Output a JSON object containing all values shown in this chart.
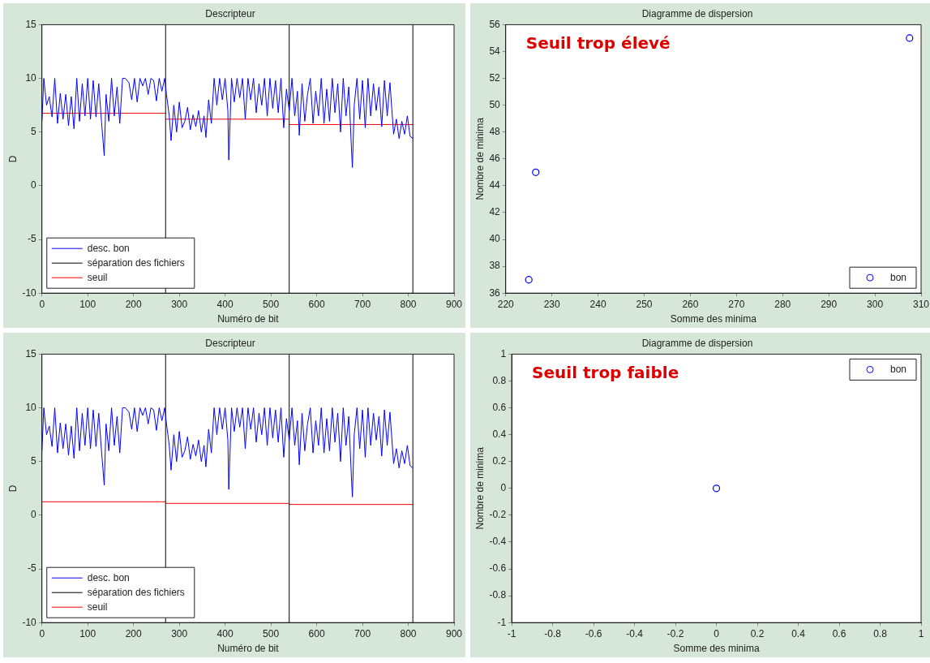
{
  "chart_data": [
    {
      "type": "line",
      "title": "Descripteur",
      "xlabel": "Numéro de bit",
      "ylabel": "D",
      "xlim": [
        0,
        900
      ],
      "xticks": [
        0,
        100,
        200,
        300,
        400,
        500,
        600,
        700,
        800,
        900
      ],
      "ylim": [
        -10,
        15
      ],
      "yticks": [
        -10,
        -5,
        0,
        5,
        10,
        15
      ],
      "grid": false,
      "legend": "bottom left",
      "series": [
        {
          "name": "desc. bon",
          "color": "#0000ff",
          "x": [
            0,
            4,
            10,
            16,
            22,
            28,
            34,
            40,
            46,
            52,
            58,
            64,
            70,
            76,
            82,
            88,
            94,
            100,
            106,
            112,
            118,
            124,
            130,
            136,
            140,
            146,
            152,
            158,
            164,
            170,
            176,
            182,
            190,
            196,
            202,
            208,
            214,
            220,
            226,
            232,
            238,
            244,
            250,
            256,
            262,
            268,
            272,
            278,
            282,
            288,
            294,
            300,
            306,
            312,
            318,
            324,
            330,
            336,
            342,
            348,
            354,
            358,
            364,
            370,
            376,
            382,
            388,
            394,
            400,
            406,
            408,
            414,
            420,
            426,
            432,
            438,
            444,
            450,
            456,
            462,
            468,
            474,
            480,
            486,
            492,
            498,
            504,
            510,
            516,
            522,
            528,
            534,
            540,
            546,
            552,
            558,
            562,
            568,
            574,
            580,
            586,
            592,
            598,
            604,
            610,
            616,
            622,
            628,
            634,
            640,
            646,
            652,
            658,
            664,
            670,
            676,
            678,
            682,
            688,
            694,
            700,
            706,
            712,
            718,
            724,
            730,
            736,
            742,
            748,
            754,
            760,
            764,
            768,
            774,
            780,
            786,
            792,
            798,
            804,
            810
          ],
          "values": [
            6.0,
            10,
            7.5,
            8.3,
            6.4,
            10,
            5.8,
            8.6,
            6.2,
            8.5,
            5.6,
            8.3,
            5.3,
            10,
            6.0,
            9.5,
            6.5,
            10,
            6.2,
            9.8,
            6.4,
            9.5,
            6.0,
            2.8,
            8.5,
            6.0,
            10,
            6.5,
            9.2,
            5.8,
            10,
            10,
            9.6,
            8.0,
            10,
            7.8,
            10,
            9.3,
            10,
            8.5,
            10,
            9.8,
            7.9,
            10,
            8.8,
            10,
            8.5,
            6.5,
            4.2,
            7.5,
            5.0,
            7.8,
            5.4,
            6.0,
            7.3,
            5.2,
            6.6,
            5.5,
            7.0,
            5.0,
            6.5,
            4.5,
            8.0,
            5.8,
            10,
            7.5,
            10,
            8.0,
            10,
            7.0,
            2.4,
            10,
            7.8,
            10,
            8.2,
            10,
            6.2,
            10,
            8.0,
            10,
            6.8,
            9.5,
            7.5,
            10,
            6.5,
            10,
            7.2,
            9.8,
            6.8,
            10,
            5.4,
            9.0,
            7.0,
            10,
            6.5,
            8.8,
            4.7,
            9.5,
            6.0,
            8.5,
            10,
            5.8,
            8.8,
            6.5,
            10,
            5.8,
            9.0,
            6.0,
            10,
            6.8,
            9.5,
            5.0,
            10,
            6.5,
            9.2,
            3.4,
            1.7,
            7.5,
            10,
            6.2,
            9.8,
            5.4,
            10,
            6.5,
            9.5,
            7.0,
            9.2,
            5.5,
            9.8,
            6.5,
            9.6,
            7.2,
            4.8,
            6.2,
            4.4,
            6.0,
            4.8,
            6.5,
            4.6,
            4.4
          ]
        },
        {
          "name": "séparation des fichiers",
          "color": "#000000",
          "x": [
            270,
            270,
            null,
            540,
            540,
            null,
            810,
            810
          ],
          "values": [
            -10,
            15,
            null,
            -10,
            15,
            null,
            -10,
            15
          ]
        },
        {
          "name": "seuil",
          "color": "#ff0000",
          "x": [
            0,
            270,
            null,
            270,
            540,
            null,
            540,
            810
          ],
          "values": [
            6.75,
            6.75,
            null,
            6.2,
            6.2,
            null,
            5.7,
            5.7
          ]
        }
      ]
    },
    {
      "type": "scatter",
      "title": "Diagramme de dispersion",
      "xlabel": "Somme des minima",
      "ylabel": "Nombre de minima",
      "xlim": [
        220,
        310
      ],
      "xticks": [
        220,
        230,
        240,
        250,
        260,
        270,
        280,
        290,
        300,
        310
      ],
      "ylim": [
        36,
        56
      ],
      "yticks": [
        36,
        38,
        40,
        42,
        44,
        46,
        48,
        50,
        52,
        54,
        56
      ],
      "grid": false,
      "legend": "bottom right",
      "marker": "circle",
      "annotations": [
        "Seuil trop élevé"
      ],
      "series": [
        {
          "name": "bon",
          "color": "#0000ff",
          "x": [
            225,
            226.5,
            307.5
          ],
          "values": [
            37,
            45,
            55
          ]
        }
      ]
    },
    {
      "type": "line",
      "title": "Descripteur",
      "xlabel": "Numéro de bit",
      "ylabel": "D",
      "xlim": [
        0,
        900
      ],
      "xticks": [
        0,
        100,
        200,
        300,
        400,
        500,
        600,
        700,
        800,
        900
      ],
      "ylim": [
        -10,
        15
      ],
      "yticks": [
        -10,
        -5,
        0,
        5,
        10,
        15
      ],
      "grid": false,
      "legend": "bottom left",
      "series": [
        {
          "name": "desc. bon",
          "color": "#0000ff",
          "x": [
            0,
            4,
            10,
            16,
            22,
            28,
            34,
            40,
            46,
            52,
            58,
            64,
            70,
            76,
            82,
            88,
            94,
            100,
            106,
            112,
            118,
            124,
            130,
            136,
            140,
            146,
            152,
            158,
            164,
            170,
            176,
            182,
            190,
            196,
            202,
            208,
            214,
            220,
            226,
            232,
            238,
            244,
            250,
            256,
            262,
            268,
            272,
            278,
            282,
            288,
            294,
            300,
            306,
            312,
            318,
            324,
            330,
            336,
            342,
            348,
            354,
            358,
            364,
            370,
            376,
            382,
            388,
            394,
            400,
            406,
            408,
            414,
            420,
            426,
            432,
            438,
            444,
            450,
            456,
            462,
            468,
            474,
            480,
            486,
            492,
            498,
            504,
            510,
            516,
            522,
            528,
            534,
            540,
            546,
            552,
            558,
            562,
            568,
            574,
            580,
            586,
            592,
            598,
            604,
            610,
            616,
            622,
            628,
            634,
            640,
            646,
            652,
            658,
            664,
            670,
            676,
            678,
            682,
            688,
            694,
            700,
            706,
            712,
            718,
            724,
            730,
            736,
            742,
            748,
            754,
            760,
            764,
            768,
            774,
            780,
            786,
            792,
            798,
            804,
            810
          ],
          "values": [
            6.0,
            10,
            7.5,
            8.3,
            6.4,
            10,
            5.8,
            8.6,
            6.2,
            8.5,
            5.6,
            8.3,
            5.3,
            10,
            6.0,
            9.5,
            6.5,
            10,
            6.2,
            9.8,
            6.4,
            9.5,
            6.0,
            2.8,
            8.5,
            6.0,
            10,
            6.5,
            9.2,
            5.8,
            10,
            10,
            9.6,
            8.0,
            10,
            7.8,
            10,
            9.3,
            10,
            8.5,
            10,
            9.8,
            7.9,
            10,
            8.8,
            10,
            8.5,
            6.5,
            4.2,
            7.5,
            5.0,
            7.8,
            5.4,
            6.0,
            7.3,
            5.2,
            6.6,
            5.5,
            7.0,
            5.0,
            6.5,
            4.5,
            8.0,
            5.8,
            10,
            7.5,
            10,
            8.0,
            10,
            7.0,
            2.4,
            10,
            7.8,
            10,
            8.2,
            10,
            6.2,
            10,
            8.0,
            10,
            6.8,
            9.5,
            7.5,
            10,
            6.5,
            10,
            7.2,
            9.8,
            6.8,
            10,
            5.4,
            9.0,
            7.0,
            10,
            6.5,
            8.8,
            4.7,
            9.5,
            6.0,
            8.5,
            10,
            5.8,
            8.8,
            6.5,
            10,
            5.8,
            9.0,
            6.0,
            10,
            6.8,
            9.5,
            5.0,
            10,
            6.5,
            9.2,
            3.4,
            1.7,
            7.5,
            10,
            6.2,
            9.8,
            5.4,
            10,
            6.5,
            9.5,
            7.0,
            9.2,
            5.5,
            9.8,
            6.5,
            9.6,
            7.2,
            4.8,
            6.2,
            4.4,
            6.0,
            4.8,
            6.5,
            4.6,
            4.4
          ]
        },
        {
          "name": "séparation des fichiers",
          "color": "#000000",
          "x": [
            270,
            270,
            null,
            540,
            540,
            null,
            810,
            810
          ],
          "values": [
            -10,
            15,
            null,
            -10,
            15,
            null,
            -10,
            15
          ]
        },
        {
          "name": "seuil",
          "color": "#ff0000",
          "x": [
            0,
            270,
            null,
            270,
            540,
            null,
            540,
            810
          ],
          "values": [
            1.25,
            1.25,
            null,
            1.1,
            1.1,
            null,
            1.0,
            1.0
          ]
        }
      ]
    },
    {
      "type": "scatter",
      "title": "Diagramme de dispersion",
      "xlabel": "Somme des minima",
      "ylabel": "Nombre de minima",
      "xlim": [
        -1,
        1
      ],
      "xticks": [
        -1,
        -0.8,
        -0.6,
        -0.4,
        -0.2,
        0,
        0.2,
        0.4,
        0.6,
        0.8,
        1
      ],
      "ylim": [
        -1,
        1
      ],
      "yticks": [
        -1,
        -0.8,
        -0.6,
        -0.4,
        -0.2,
        0,
        0.2,
        0.4,
        0.6,
        0.8,
        1
      ],
      "grid": false,
      "legend": "top right",
      "marker": "circle",
      "annotations": [
        "Seuil trop faible"
      ],
      "series": [
        {
          "name": "bon",
          "color": "#0000ff",
          "x": [
            0
          ],
          "values": [
            0
          ]
        }
      ]
    }
  ]
}
